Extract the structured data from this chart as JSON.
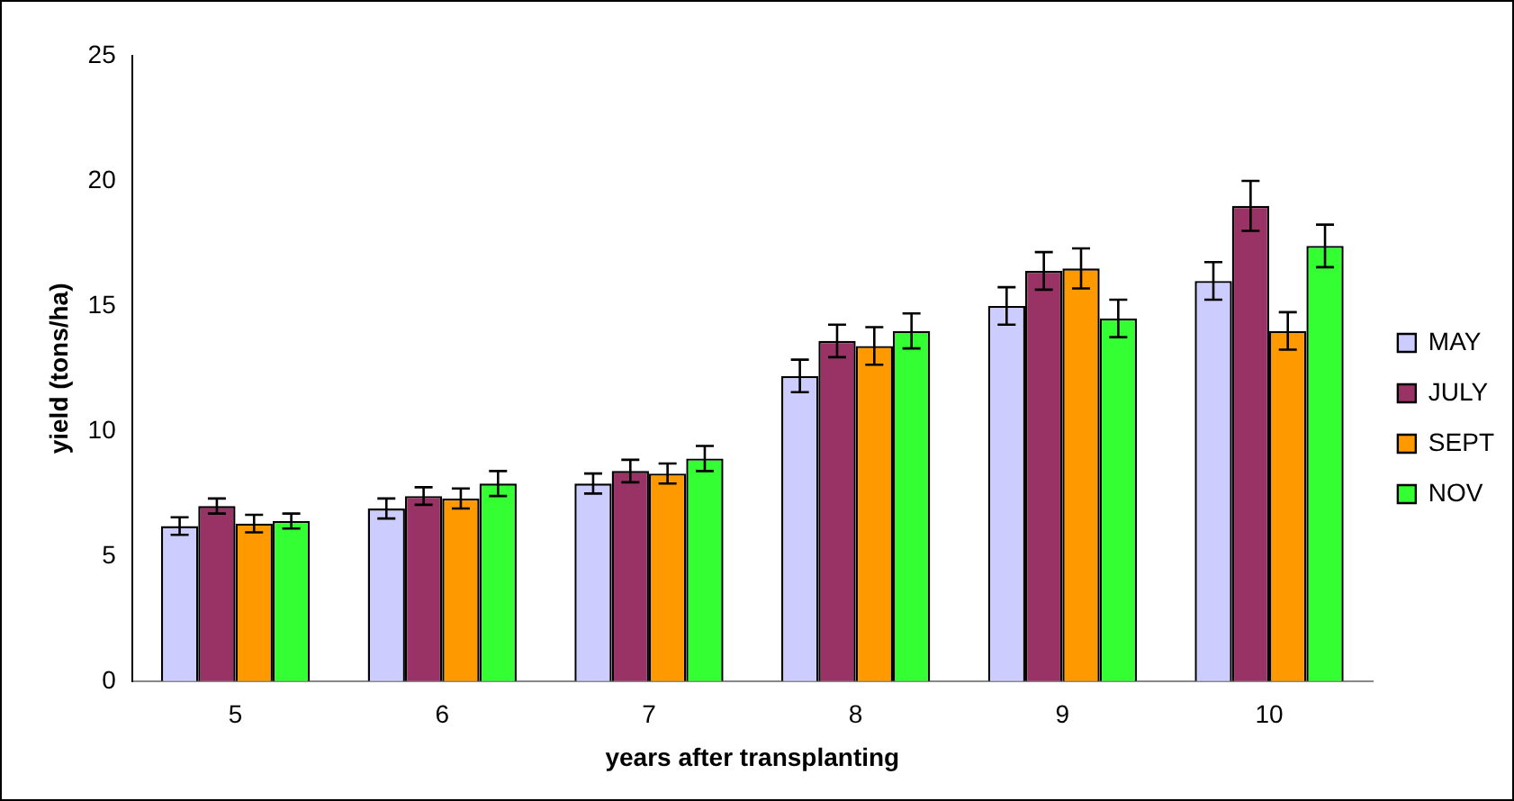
{
  "chart_data": {
    "type": "bar",
    "xlabel": "years after transplanting",
    "ylabel": "yield (tons/ha)",
    "categories": [
      "5",
      "6",
      "7",
      "8",
      "9",
      "10"
    ],
    "series": [
      {
        "name": "MAY",
        "color": "#ccccff",
        "values": [
          6.2,
          6.9,
          7.9,
          12.2,
          15.0,
          16.0
        ],
        "errors": [
          0.35,
          0.4,
          0.4,
          0.65,
          0.75,
          0.75
        ]
      },
      {
        "name": "JULY",
        "color": "#993366",
        "values": [
          7.0,
          7.4,
          8.4,
          13.6,
          16.4,
          19.0
        ],
        "errors": [
          0.3,
          0.35,
          0.45,
          0.65,
          0.75,
          1.0
        ]
      },
      {
        "name": "SEPT",
        "color": "#ff9900",
        "values": [
          6.3,
          7.3,
          8.3,
          13.4,
          16.5,
          14.0
        ],
        "errors": [
          0.35,
          0.4,
          0.4,
          0.75,
          0.8,
          0.75
        ]
      },
      {
        "name": "NOV",
        "color": "#33ff33",
        "values": [
          6.4,
          7.9,
          8.9,
          14.0,
          14.5,
          17.4
        ],
        "errors": [
          0.3,
          0.5,
          0.5,
          0.7,
          0.75,
          0.85
        ]
      }
    ],
    "ylim": [
      0,
      25
    ],
    "yticks": [
      0,
      5,
      10,
      15,
      20,
      25
    ],
    "grid": false,
    "legend": "right"
  }
}
